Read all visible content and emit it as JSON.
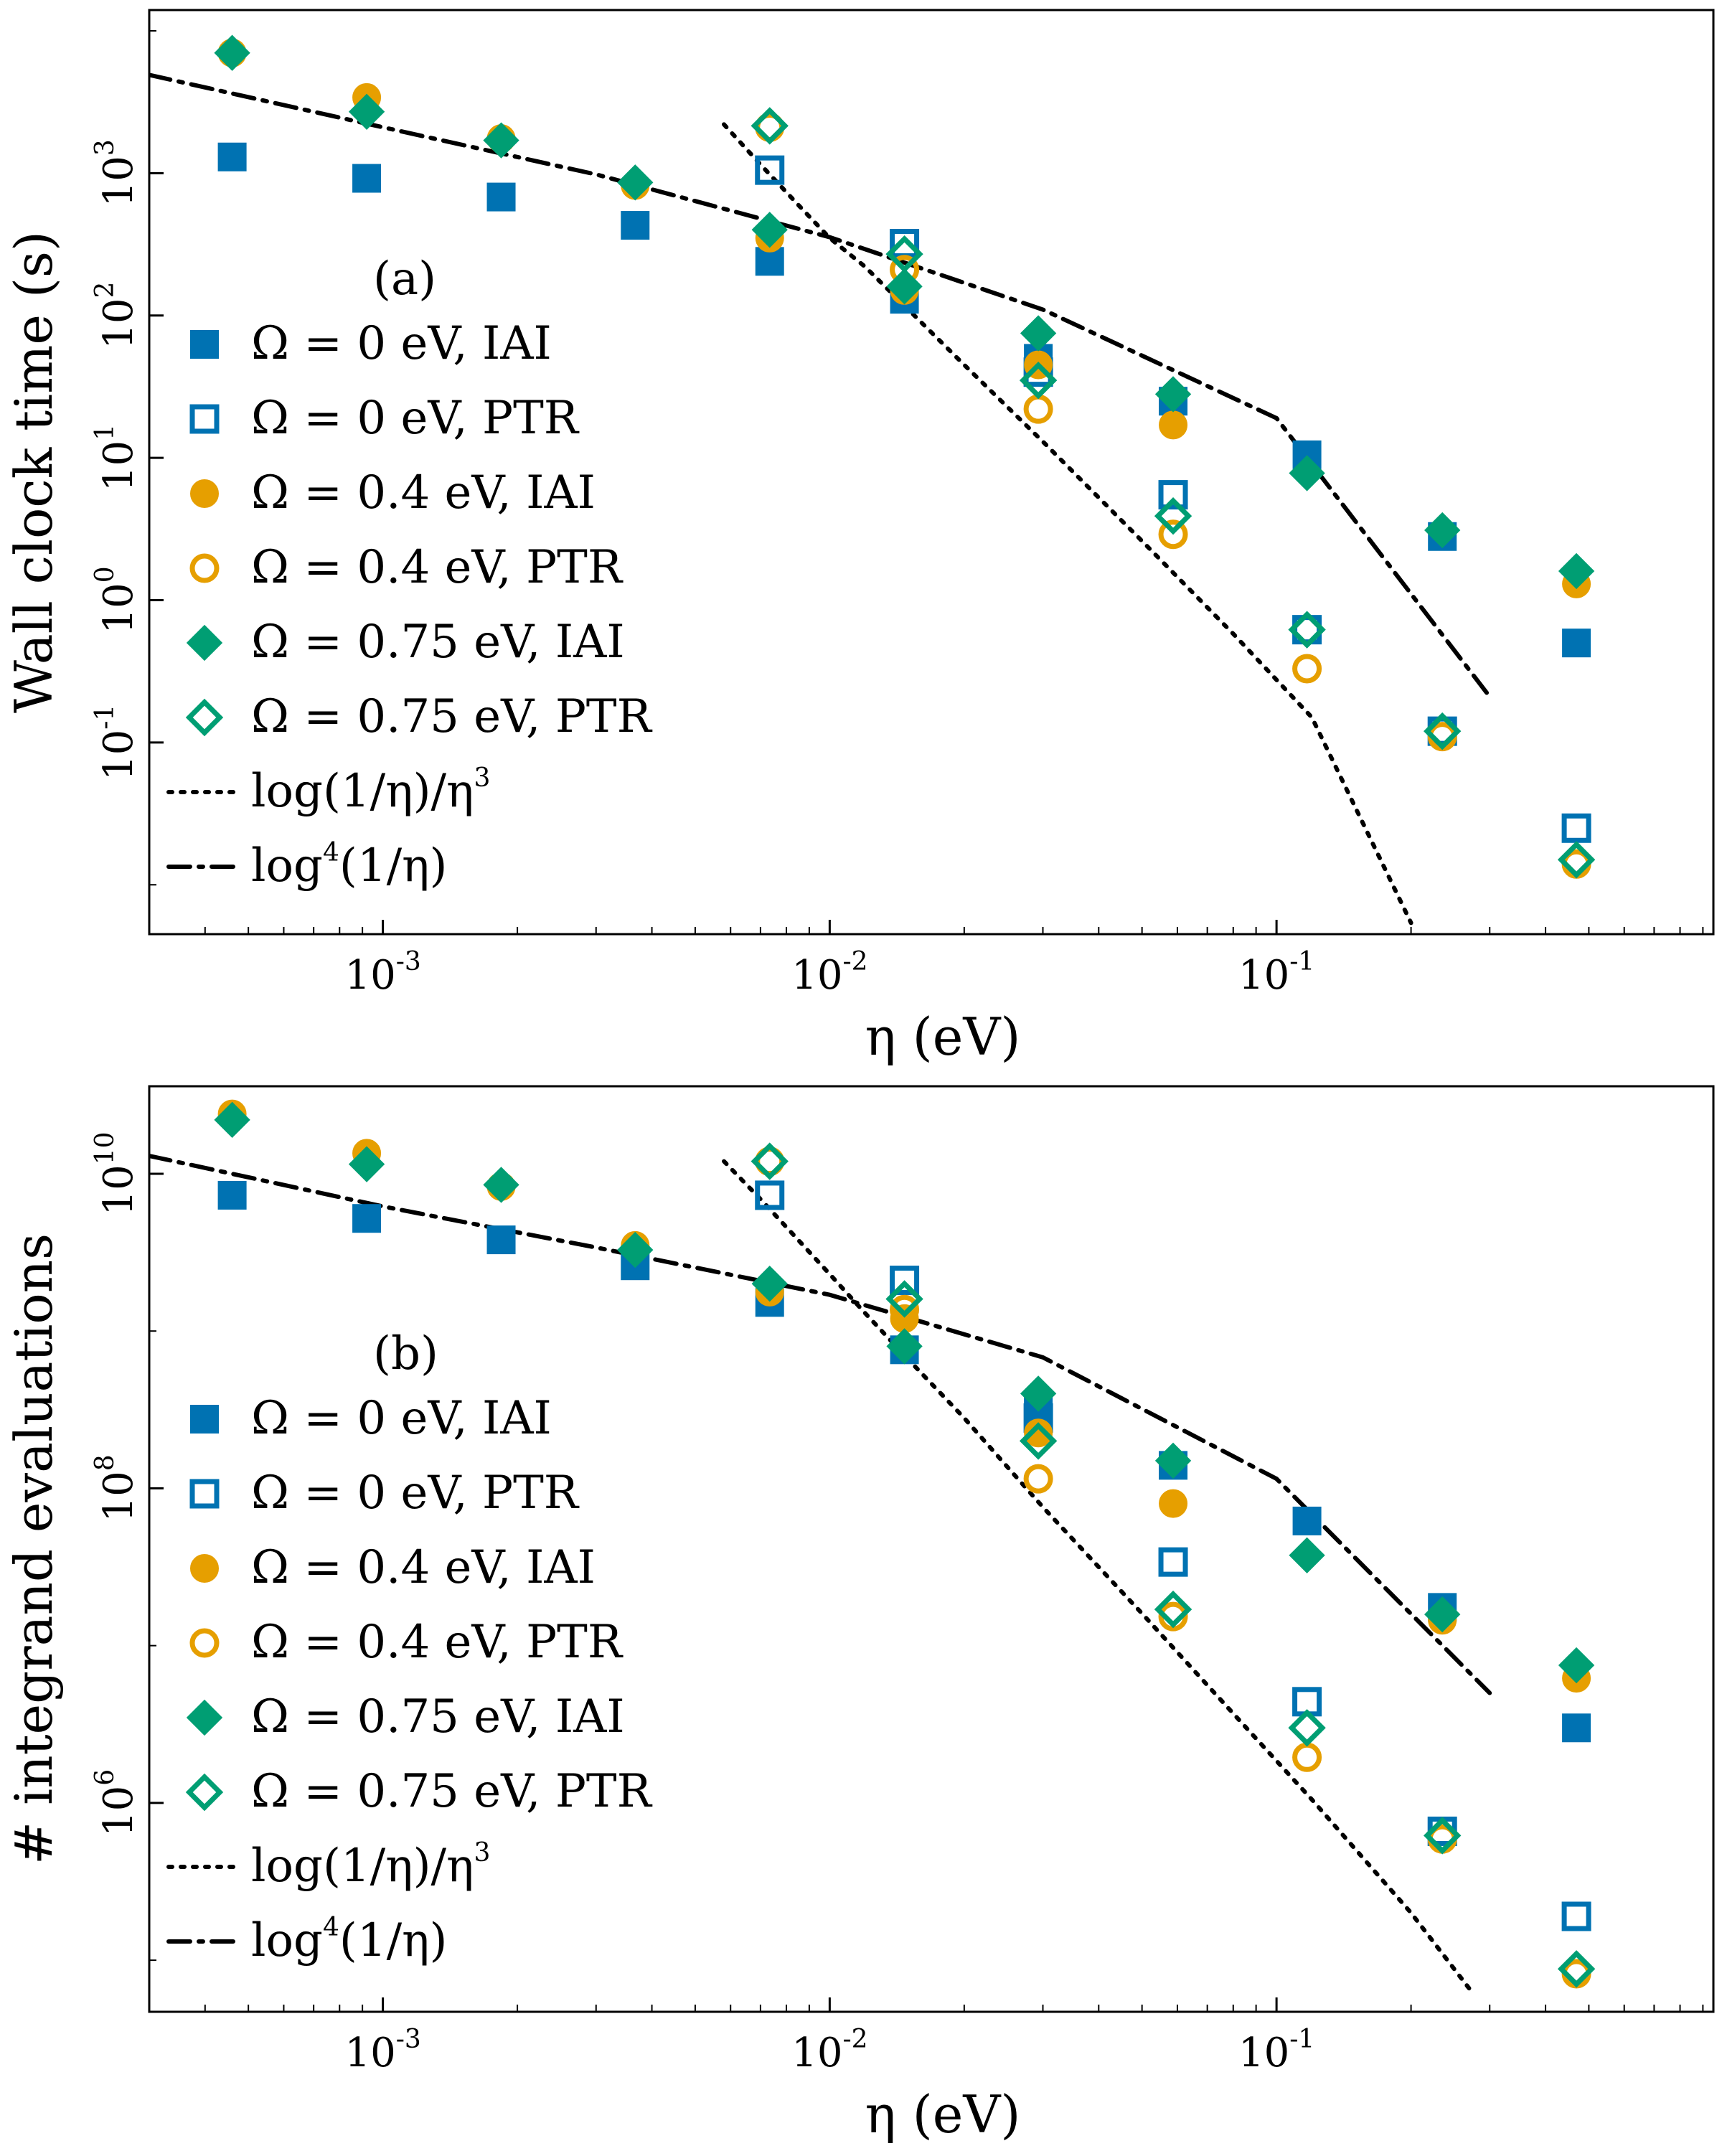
{
  "colors": {
    "blue": "#0072b2",
    "orange": "#e69f00",
    "green": "#009e73",
    "black": "#000000"
  },
  "chart_data": [
    {
      "type": "scatter",
      "panel_label": "(a)",
      "xlabel": "η (eV)",
      "ylabel": "Wall clock time (s)",
      "xscale": "log",
      "yscale": "log",
      "xlim": [
        0.0003,
        0.95
      ],
      "ylim": [
        0.0045,
        14000
      ],
      "xticks": [
        {
          "value": 0.001,
          "base": "10",
          "exp": "-3"
        },
        {
          "value": 0.01,
          "base": "10",
          "exp": "-2"
        },
        {
          "value": 0.1,
          "base": "10",
          "exp": "-1"
        }
      ],
      "yticks": [
        {
          "value": 0.1,
          "base": "10",
          "exp": "-1"
        },
        {
          "value": 1,
          "base": "10",
          "exp": "0"
        },
        {
          "value": 10,
          "base": "10",
          "exp": "1"
        },
        {
          "value": 100,
          "base": "10",
          "exp": "2"
        },
        {
          "value": 1000,
          "base": "10",
          "exp": "3"
        }
      ],
      "legend_position": "lower-left",
      "x": [
        0.00046,
        0.00092,
        0.00184,
        0.00367,
        0.00734,
        0.0147,
        0.0293,
        0.0587,
        0.117,
        0.235,
        0.469
      ],
      "series": [
        {
          "name": "Ω = 0 eV, IAI",
          "color": "blue",
          "marker": "square",
          "filled": true,
          "values": [
            1300,
            920,
            680,
            430,
            240,
            130,
            50,
            25,
            10.5,
            2.8,
            0.5
          ]
        },
        {
          "name": "Ω = 0 eV, PTR",
          "color": "blue",
          "marker": "square",
          "filled": false,
          "values": [
            null,
            null,
            null,
            null,
            1050,
            320,
            40,
            5.5,
            0.62,
            0.12,
            0.025
          ]
        },
        {
          "name": "Ω = 0.4 eV, IAI",
          "color": "orange",
          "marker": "circle",
          "filled": true,
          "values": [
            7000,
            3400,
            1750,
            820,
            350,
            150,
            45,
            17,
            null,
            null,
            1.3
          ]
        },
        {
          "name": "Ω = 0.4 eV, PTR",
          "color": "orange",
          "marker": "circle",
          "filled": false,
          "values": [
            null,
            null,
            null,
            null,
            2100,
            210,
            22,
            2.9,
            0.33,
            0.11,
            0.014
          ]
        },
        {
          "name": "Ω = 0.75 eV, IAI",
          "color": "green",
          "marker": "diamond",
          "filled": true,
          "values": [
            7000,
            2700,
            1700,
            860,
            400,
            160,
            75,
            28,
            7.8,
            3.1,
            1.6
          ]
        },
        {
          "name": "Ω = 0.75 eV, PTR",
          "color": "green",
          "marker": "diamond",
          "filled": false,
          "values": [
            null,
            null,
            null,
            null,
            2150,
            270,
            35,
            3.9,
            0.62,
            0.12,
            0.015
          ]
        }
      ],
      "reference_lines": [
        {
          "name": "log(1/η)/η³",
          "style": "dotted",
          "x": [
            0.0058,
            0.007,
            0.0085,
            0.01,
            0.012,
            0.015,
            0.02,
            0.03,
            0.05,
            0.08,
            0.12,
            0.2
          ],
          "values": [
            2200,
            1150,
            600,
            350,
            220,
            110,
            45,
            13,
            2.6,
            0.58,
            0.15,
            0.0054
          ]
        },
        {
          "name": "log⁴(1/η)",
          "style": "dashdot",
          "x": [
            0.0003,
            0.001,
            0.003,
            0.01,
            0.03,
            0.1,
            0.3
          ],
          "values": [
            4900,
            2100,
            980,
            355,
            110,
            19,
            0.21
          ]
        }
      ],
      "legend": {
        "s0": {
          "pre": "Ω = 0 eV, IAI"
        },
        "s1": {
          "pre": "Ω = 0 eV, PTR"
        },
        "s2": {
          "pre": "Ω = 0.4 eV, IAI"
        },
        "s3": {
          "pre": "Ω = 0.4 eV, PTR"
        },
        "s4": {
          "pre": "Ω = 0.75 eV, IAI"
        },
        "s5": {
          "pre": "Ω = 0.75 eV, PTR"
        },
        "r0": {
          "pre": "log(1/η)/η",
          "sup": "3",
          "post": ""
        },
        "r1": {
          "pre": "log",
          "sup": "4",
          "post": "(1/η)"
        }
      }
    },
    {
      "type": "scatter",
      "panel_label": "(b)",
      "xlabel": "η (eV)",
      "ylabel": "# integrand evaluations",
      "xscale": "log",
      "yscale": "log",
      "xlim": [
        0.0003,
        0.95
      ],
      "ylim": [
        47000,
        36000000000
      ],
      "xticks": [
        {
          "value": 0.001,
          "base": "10",
          "exp": "-3"
        },
        {
          "value": 0.01,
          "base": "10",
          "exp": "-2"
        },
        {
          "value": 0.1,
          "base": "10",
          "exp": "-1"
        }
      ],
      "yticks": [
        {
          "value": 1000000,
          "base": "10",
          "exp": "6"
        },
        {
          "value": 100000000,
          "base": "10",
          "exp": "8"
        },
        {
          "value": 10000000000,
          "base": "10",
          "exp": "10"
        }
      ],
      "legend_position": "lower-left",
      "x": [
        0.00046,
        0.00092,
        0.00184,
        0.00367,
        0.00734,
        0.0147,
        0.0293,
        0.0587,
        0.117,
        0.235,
        0.469
      ],
      "series": [
        {
          "name": "Ω = 0 eV, IAI",
          "color": "blue",
          "marker": "square",
          "filled": true,
          "values": [
            7300000000,
            5200000000,
            3800000000,
            2600000000,
            1520000000,
            760000000,
            320000000,
            140000000,
            62000000,
            17500000,
            3000000
          ]
        },
        {
          "name": "Ω = 0 eV, PTR",
          "color": "blue",
          "marker": "square",
          "filled": false,
          "values": [
            null,
            null,
            null,
            null,
            7300000000,
            2100000000,
            280000000,
            34000000,
            4400000,
            660000,
            190000
          ]
        },
        {
          "name": "Ω = 0.4 eV, IAI",
          "color": "orange",
          "marker": "circle",
          "filled": true,
          "values": [
            24000000000,
            13500000000,
            8300000000,
            3500000000,
            1770000000,
            1200000000,
            225000000,
            80000000,
            null,
            14500000,
            6200000
          ]
        },
        {
          "name": "Ω = 0.4 eV, PTR",
          "color": "orange",
          "marker": "circle",
          "filled": false,
          "values": [
            null,
            null,
            null,
            null,
            12000000000,
            1370000000,
            115000000,
            15300000,
            1950000,
            590000,
            82000
          ]
        },
        {
          "name": "Ω = 0.75 eV, IAI",
          "color": "green",
          "marker": "diamond",
          "filled": true,
          "values": [
            22000000000,
            11500000000,
            8500000000,
            3280000000,
            2000000000,
            800000000,
            400000000,
            150000000,
            37500000,
            15800000,
            7500000
          ]
        },
        {
          "name": "Ω = 0.75 eV, PTR",
          "color": "green",
          "marker": "diamond",
          "filled": false,
          "values": [
            null,
            null,
            null,
            null,
            12000000000,
            1600000000,
            200000000,
            17000000,
            3000000,
            620000,
            88000
          ]
        }
      ],
      "reference_lines": [
        {
          "name": "log(1/η)/η³",
          "style": "dotted",
          "x": [
            0.0058,
            0.007,
            0.0085,
            0.01,
            0.012,
            0.015,
            0.02,
            0.03,
            0.05,
            0.08,
            0.12,
            0.2,
            0.27
          ],
          "values": [
            12000000000,
            6900000000,
            3800000000,
            2300000000,
            1300000000,
            660000000,
            280000000,
            76000000,
            16000000,
            3700000,
            1050000,
            200000,
            66000
          ]
        },
        {
          "name": "log⁴(1/η)",
          "style": "dashdot",
          "x": [
            0.0003,
            0.001,
            0.003,
            0.01,
            0.03,
            0.1,
            0.3
          ],
          "values": [
            13000000000,
            6200000000,
            3400000000,
            1700000000,
            680000000,
            115000000,
            5000000
          ]
        }
      ],
      "legend": {
        "s0": {
          "pre": "Ω = 0 eV, IAI"
        },
        "s1": {
          "pre": "Ω = 0 eV, PTR"
        },
        "s2": {
          "pre": "Ω = 0.4 eV, IAI"
        },
        "s3": {
          "pre": "Ω = 0.4 eV, PTR"
        },
        "s4": {
          "pre": "Ω = 0.75 eV, IAI"
        },
        "s5": {
          "pre": "Ω = 0.75 eV, PTR"
        },
        "r0": {
          "pre": "log(1/η)/η",
          "sup": "3",
          "post": ""
        },
        "r1": {
          "pre": "log",
          "sup": "4",
          "post": "(1/η)"
        }
      }
    }
  ]
}
